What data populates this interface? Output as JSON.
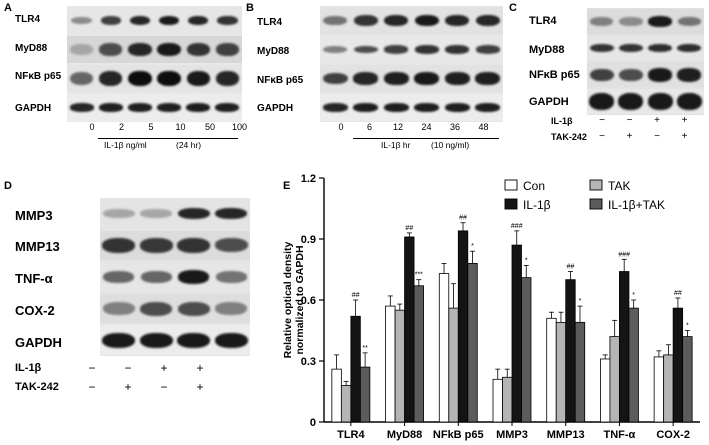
{
  "panel_a": {
    "letter": "A",
    "rows": [
      "TLR4",
      "MyD88",
      "NFκB p65",
      "GAPDH"
    ],
    "lanes": [
      "0",
      "2",
      "5",
      "10",
      "50",
      "100"
    ],
    "caption_agent": "IL-1β ng/ml",
    "caption_time": "(24 hr)"
  },
  "panel_b": {
    "letter": "B",
    "rows": [
      "TLR4",
      "MyD88",
      "NFκB p65",
      "GAPDH"
    ],
    "lanes": [
      "0",
      "6",
      "12",
      "24",
      "36",
      "48"
    ],
    "caption_agent": "IL-1β hr",
    "caption_conc": "(10 ng/ml)"
  },
  "panel_c": {
    "letter": "C",
    "rows": [
      "TLR4",
      "MyD88",
      "NFκB p65",
      "GAPDH"
    ],
    "treatments": [
      {
        "name": "IL-1β",
        "signs": [
          "−",
          "−",
          "+",
          "+"
        ]
      },
      {
        "name": "TAK-242",
        "signs": [
          "−",
          "+",
          "−",
          "+"
        ]
      }
    ]
  },
  "panel_d": {
    "letter": "D",
    "rows": [
      "MMP3",
      "MMP13",
      "TNF-α",
      "COX-2",
      "GAPDH"
    ],
    "treatments": [
      {
        "name": "IL-1β",
        "signs": [
          "−",
          "−",
          "+",
          "+"
        ]
      },
      {
        "name": "TAK-242",
        "signs": [
          "−",
          "+",
          "−",
          "+"
        ]
      }
    ]
  },
  "panel_e": {
    "letter": "E",
    "ylabel_line1": "Relative optical density",
    "ylabel_line2": "normalized to GAPDH"
  },
  "chart_data": {
    "type": "bar",
    "categories": [
      "TLR4",
      "MyD88",
      "NFkB p65",
      "MMP3",
      "MMP13",
      "TNF-α",
      "COX-2"
    ],
    "ylim": [
      0,
      1.2
    ],
    "yticks": [
      "0",
      "0.3",
      "0.6",
      "0.9",
      "1.2"
    ],
    "legend_position": "top-right",
    "series": [
      {
        "name": "Con",
        "color": "#ffffff",
        "values": [
          0.26,
          0.57,
          0.73,
          0.21,
          0.51,
          0.31,
          0.32
        ],
        "errors": [
          0.07,
          0.05,
          0.05,
          0.05,
          0.03,
          0.02,
          0.03
        ],
        "sig": [
          "",
          "",
          "",
          "",
          "",
          "",
          ""
        ]
      },
      {
        "name": "TAK",
        "color": "#b5b5b5",
        "values": [
          0.18,
          0.55,
          0.56,
          0.22,
          0.49,
          0.42,
          0.33
        ],
        "errors": [
          0.02,
          0.03,
          0.12,
          0.04,
          0.05,
          0.08,
          0.05
        ],
        "sig": [
          "",
          "",
          "",
          "",
          "",
          "",
          ""
        ]
      },
      {
        "name": "IL-1β",
        "color": "#141414",
        "values": [
          0.52,
          0.91,
          0.94,
          0.87,
          0.7,
          0.74,
          0.56
        ],
        "errors": [
          0.08,
          0.02,
          0.04,
          0.07,
          0.04,
          0.06,
          0.05
        ],
        "sig": [
          "##",
          "##",
          "##",
          "###",
          "##",
          "###",
          "##"
        ]
      },
      {
        "name": "IL-1β+TAK",
        "color": "#5c5c5c",
        "values": [
          0.27,
          0.67,
          0.78,
          0.71,
          0.49,
          0.56,
          0.42
        ],
        "errors": [
          0.07,
          0.03,
          0.06,
          0.06,
          0.08,
          0.04,
          0.03
        ],
        "sig": [
          "**",
          "***",
          "*",
          "*",
          "*",
          "*",
          "*"
        ]
      }
    ]
  }
}
